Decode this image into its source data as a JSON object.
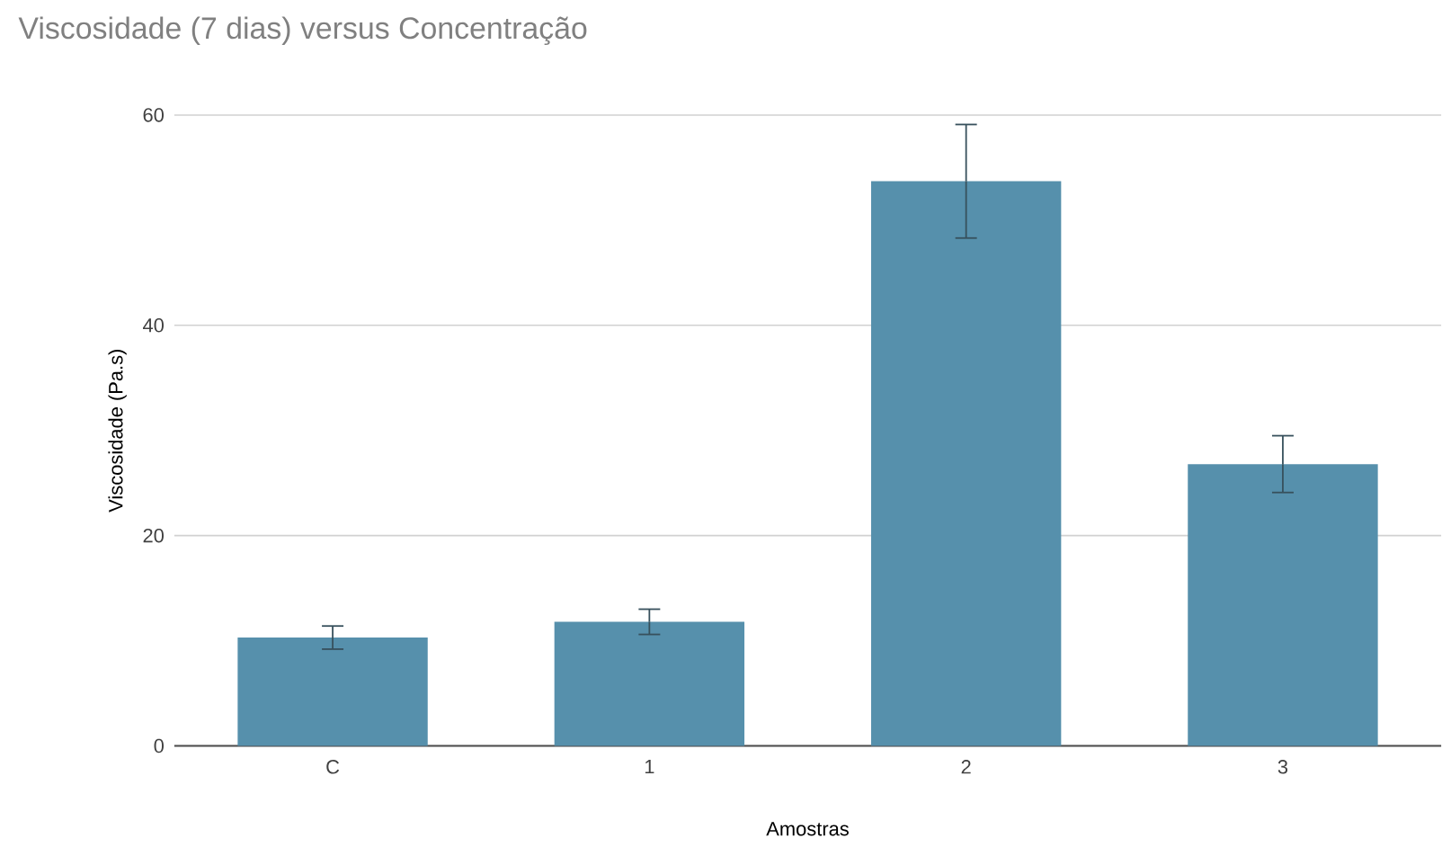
{
  "chart_data": {
    "type": "bar",
    "title": "Viscosidade (7 dias) versus Concentração",
    "xlabel": "Amostras",
    "ylabel": "Viscosidade (Pa.s)",
    "categories": [
      "C",
      "1",
      "2",
      "3"
    ],
    "values": [
      10.3,
      11.8,
      53.7,
      26.8
    ],
    "errors": [
      1.1,
      1.2,
      5.4,
      2.7
    ],
    "color": "#5690ac",
    "ylim": [
      0,
      60
    ],
    "yticks": [
      0,
      20,
      40,
      60
    ],
    "grid": "y"
  }
}
